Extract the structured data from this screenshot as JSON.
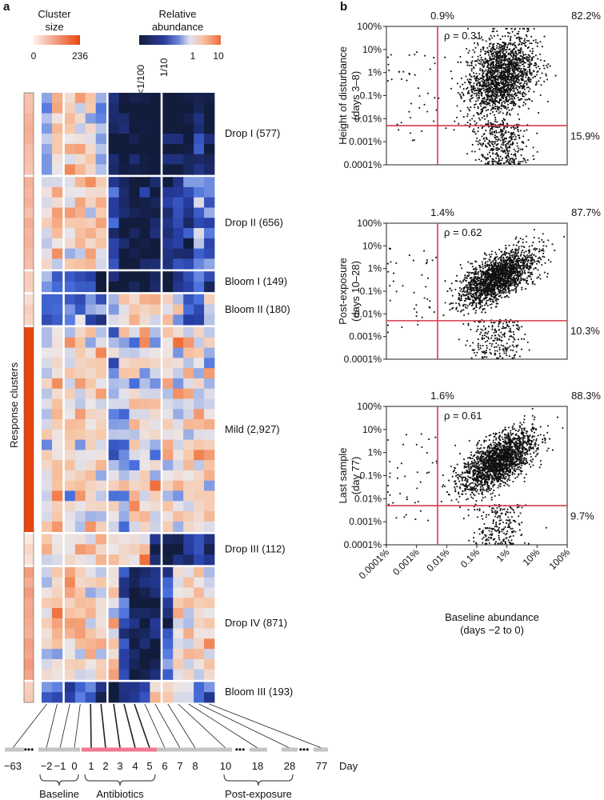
{
  "panel_a": {
    "letter": "a",
    "cluster_size_legend": {
      "title_line1": "Cluster",
      "title_line2": "size",
      "min_label": "0",
      "max_label": "236",
      "color_low": "#fde8dc",
      "color_high": "#e8440f"
    },
    "abundance_legend": {
      "title_line1": "Relative",
      "title_line2": "abundance",
      "tick_labels": [
        "<1/100",
        "1/10",
        "1",
        "10"
      ],
      "colors": [
        "#121c3c",
        "#3f59c4",
        "#c9d2ec",
        "#f5cdb6",
        "#f0703c"
      ]
    },
    "y_axis_label": "Response clusters",
    "clusters": [
      {
        "label": "Drop I (577)",
        "name": "Drop I",
        "size": 577,
        "rows": 8
      },
      {
        "label": "Drop II (656)",
        "name": "Drop II",
        "size": 656,
        "rows": 9
      },
      {
        "label": "Bloom I (149)",
        "name": "Bloom I",
        "size": 149,
        "rows": 2
      },
      {
        "label": "Bloom II (180)",
        "name": "Bloom II",
        "size": 180,
        "rows": 3
      },
      {
        "label": "Mild (2,927)",
        "name": "Mild",
        "size": 2927,
        "rows": 20
      },
      {
        "label": "Drop III (112)",
        "name": "Drop III",
        "size": 112,
        "rows": 3
      },
      {
        "label": "Drop IV (871)",
        "name": "Drop IV",
        "size": 871,
        "rows": 11
      },
      {
        "label": "Bloom III (193)",
        "name": "Bloom III",
        "size": 193,
        "rows": 2
      }
    ],
    "heatmap_column_groups": [
      2,
      4,
      5,
      5,
      1,
      1
    ],
    "timeline": {
      "day_labels": [
        "−63",
        "−2",
        "−1",
        "0",
        "1",
        "2",
        "3",
        "4",
        "5",
        "6",
        "7",
        "8",
        "10",
        "18",
        "28",
        "77"
      ],
      "axis_label": "Day",
      "ellipsis": "•••",
      "phases": [
        {
          "label": "Baseline",
          "from": "−2",
          "to": "0"
        },
        {
          "label": "Antibiotics",
          "from": "1",
          "to": "5"
        },
        {
          "label": "Post-exposure",
          "from": "10",
          "to": "28"
        }
      ],
      "antibiotics_color": "#f07890"
    }
  },
  "panel_b": {
    "letter": "b",
    "x_axis_label_line1": "Baseline abundance",
    "x_axis_label_line2": "(days −2 to 0)",
    "tick_labels": [
      "0.0001%",
      "0.001%",
      "0.01%",
      "0.1%",
      "1%",
      "10%",
      "100%"
    ],
    "threshold_color": "#d83a4c"
  },
  "chart_data": [
    {
      "type": "scatter",
      "title": "Height of disturbance (days 3–8) vs baseline abundance",
      "ylabel_line1": "Height of disturbance",
      "ylabel_line2": "(days 3–8)",
      "xlabel": "Baseline abundance (days −2 to 0)",
      "x_scale": "log",
      "y_scale": "log",
      "xlim": [
        "0.0001%",
        "100%"
      ],
      "ylim": [
        "0.0001%",
        "100%"
      ],
      "threshold_percent": 0.005,
      "rho_label": "ρ = 0.31",
      "rho": 0.31,
      "quadrant_top_left": "0.9%",
      "quadrant_top_right": "82.2%",
      "quadrant_bottom_right": "15.9%",
      "cloud_center_log10": [
        -0.2,
        -0.2
      ],
      "cloud_spread_log10": [
        0.55,
        0.9
      ],
      "bottom_band_fraction": 0.159
    },
    {
      "type": "scatter",
      "title": "Post-exposure (days 10–28) vs baseline abundance",
      "ylabel_line1": "Post-exposure",
      "ylabel_line2": "(days 10–28)",
      "xlabel": "Baseline abundance (days −2 to 0)",
      "x_scale": "log",
      "y_scale": "log",
      "xlim": [
        "0.0001%",
        "100%"
      ],
      "ylim": [
        "0.0001%",
        "100%"
      ],
      "threshold_percent": 0.005,
      "rho_label": "ρ = 0.62",
      "rho": 0.62,
      "quadrant_top_left": "1.4%",
      "quadrant_top_right": "87.7%",
      "quadrant_bottom_right": "10.3%",
      "cloud_center_log10": [
        -0.3,
        -0.4
      ],
      "cloud_spread_log10": [
        0.6,
        0.6
      ],
      "bottom_band_fraction": 0.103
    },
    {
      "type": "scatter",
      "title": "Last sample (day 77) vs baseline abundance",
      "ylabel_line1": "Last sample",
      "ylabel_line2": "(day 77)",
      "xlabel": "Baseline abundance (days −2 to 0)",
      "x_scale": "log",
      "y_scale": "log",
      "xlim": [
        "0.0001%",
        "100%"
      ],
      "ylim": [
        "0.0001%",
        "100%"
      ],
      "threshold_percent": 0.005,
      "rho_label": "ρ = 0.61",
      "rho": 0.61,
      "quadrant_top_left": "1.6%",
      "quadrant_top_right": "88.3%",
      "quadrant_bottom_right": "9.7%",
      "cloud_center_log10": [
        -0.3,
        -0.4
      ],
      "cloud_spread_log10": [
        0.6,
        0.65
      ],
      "bottom_band_fraction": 0.097
    }
  ]
}
